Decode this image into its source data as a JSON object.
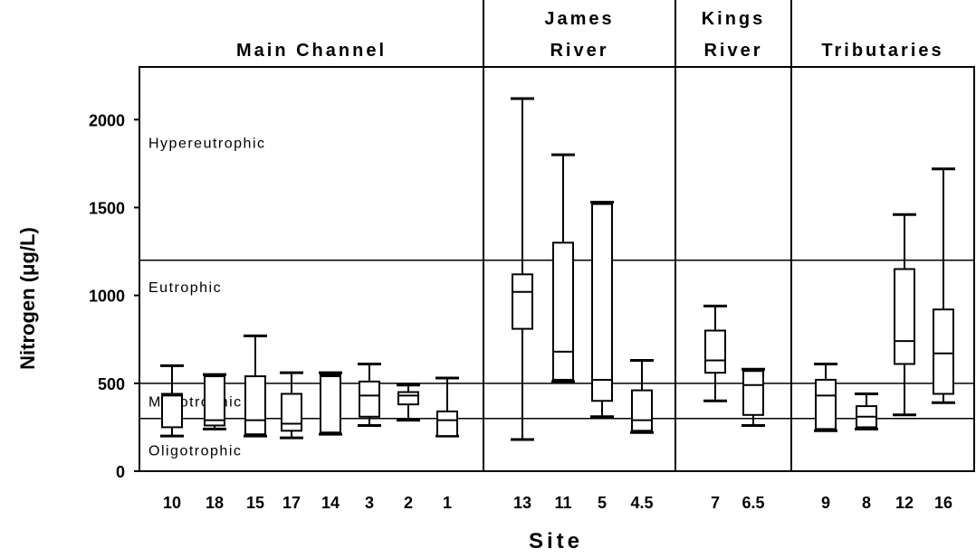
{
  "chart_data": {
    "type": "boxplot",
    "xlabel": "Site",
    "ylabel": "Nitrogen (μg/L)",
    "ylim": [
      0,
      2300
    ],
    "yticks": [
      0,
      500,
      1000,
      1500,
      2000
    ],
    "groups": [
      {
        "name_lines": [
          "Main Channel"
        ],
        "sites": [
          {
            "site": "10",
            "min": 200,
            "q1": 250,
            "median": 430,
            "q3": 440,
            "max": 600
          },
          {
            "site": "18",
            "min": 240,
            "q1": 260,
            "median": 290,
            "q3": 540,
            "max": 550
          },
          {
            "site": "15",
            "min": 200,
            "q1": 210,
            "median": 290,
            "q3": 540,
            "max": 770
          },
          {
            "site": "17",
            "min": 190,
            "q1": 230,
            "median": 270,
            "q3": 440,
            "max": 560
          },
          {
            "site": "14",
            "min": 210,
            "q1": 220,
            "median": 540,
            "q3": 550,
            "max": 560
          },
          {
            "site": "3",
            "min": 260,
            "q1": 310,
            "median": 430,
            "q3": 510,
            "max": 610
          },
          {
            "site": "2",
            "min": 290,
            "q1": 380,
            "median": 430,
            "q3": 450,
            "max": 490
          },
          {
            "site": "1",
            "min": 200,
            "q1": 200,
            "median": 290,
            "q3": 340,
            "max": 530
          }
        ]
      },
      {
        "name_lines": [
          "James",
          "River"
        ],
        "sites": [
          {
            "site": "13",
            "min": 180,
            "q1": 810,
            "median": 1020,
            "q3": 1120,
            "max": 2120
          },
          {
            "site": "11",
            "min": 510,
            "q1": 520,
            "median": 680,
            "q3": 1300,
            "max": 1800
          },
          {
            "site": "5",
            "min": 310,
            "q1": 400,
            "median": 520,
            "q3": 1520,
            "max": 1530
          },
          {
            "site": "4.5",
            "min": 220,
            "q1": 230,
            "median": 290,
            "q3": 460,
            "max": 630
          }
        ]
      },
      {
        "name_lines": [
          "Kings",
          "River"
        ],
        "sites": [
          {
            "site": "7",
            "min": 400,
            "q1": 560,
            "median": 630,
            "q3": 800,
            "max": 940
          },
          {
            "site": "6.5",
            "min": 260,
            "q1": 320,
            "median": 490,
            "q3": 570,
            "max": 580
          }
        ]
      },
      {
        "name_lines": [
          "Tributaries"
        ],
        "sites": [
          {
            "site": "9",
            "min": 230,
            "q1": 240,
            "median": 430,
            "q3": 520,
            "max": 610
          },
          {
            "site": "8",
            "min": 240,
            "q1": 250,
            "median": 310,
            "q3": 370,
            "max": 440
          },
          {
            "site": "12",
            "min": 320,
            "q1": 610,
            "median": 740,
            "q3": 1150,
            "max": 1460
          },
          {
            "site": "16",
            "min": 390,
            "q1": 440,
            "median": 670,
            "q3": 920,
            "max": 1720
          }
        ]
      }
    ],
    "thresholds": [
      300,
      500,
      1200
    ],
    "zones": [
      {
        "label": "Hypereutrophic",
        "y": 1870
      },
      {
        "label": "Eutrophic",
        "y": 1050
      },
      {
        "label": "Mesotrophic",
        "y": 400
      },
      {
        "label": "Oligotrophic",
        "y": 120
      }
    ]
  }
}
